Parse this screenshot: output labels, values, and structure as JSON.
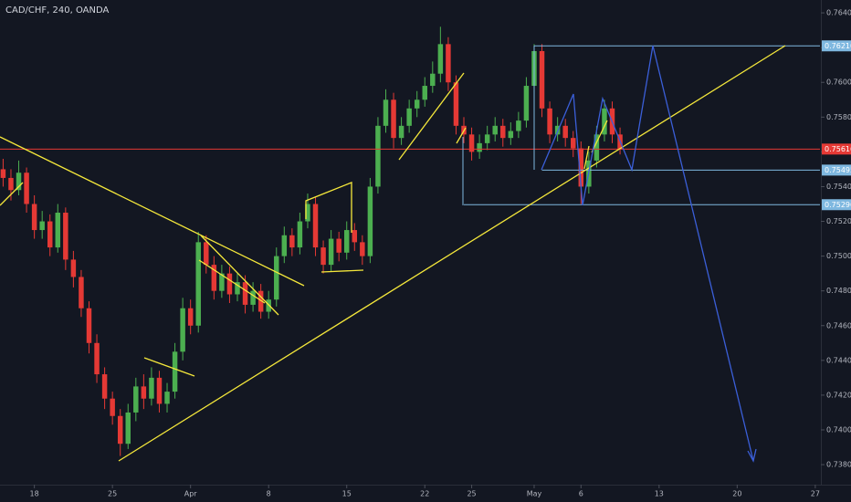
{
  "chart_data": {
    "type": "candlestick",
    "title": "CAD/CHF, 240, OANDA",
    "up_color": "#4caf50",
    "down_color": "#e53935",
    "x": [
      -2,
      -1.5,
      -1,
      -0.5,
      0,
      0.5,
      1,
      1.5,
      2,
      2.5,
      3,
      3.5,
      4,
      4.5,
      5,
      5.5,
      6,
      6.5,
      7,
      7.5,
      8,
      8.5,
      9,
      9.5,
      10,
      10.5,
      11,
      11.5,
      12,
      12.5,
      13,
      13.5,
      14,
      14.5,
      15,
      15.5,
      16,
      16.5,
      17,
      17.5,
      18,
      18.5,
      19,
      19.5,
      20,
      20.5,
      21,
      21.5,
      22,
      22.5,
      23,
      23.5,
      24,
      24.5,
      25,
      25.5,
      26,
      26.5,
      27,
      27.5,
      28,
      28.5,
      29,
      29.5,
      30,
      30.5,
      31,
      31.5,
      32,
      32.5,
      33,
      33.5,
      34,
      34.5,
      35,
      35.5,
      36,
      36.5,
      37,
      37.5
    ],
    "ohlc": [
      [
        0.755,
        0.7556,
        0.754,
        0.7545
      ],
      [
        0.7545,
        0.755,
        0.7532,
        0.7538
      ],
      [
        0.7538,
        0.7555,
        0.7535,
        0.7548
      ],
      [
        0.7548,
        0.7551,
        0.7525,
        0.753
      ],
      [
        0.753,
        0.7535,
        0.751,
        0.7515
      ],
      [
        0.7515,
        0.7526,
        0.751,
        0.752
      ],
      [
        0.752,
        0.7524,
        0.75,
        0.7505
      ],
      [
        0.7505,
        0.753,
        0.7502,
        0.7525
      ],
      [
        0.7525,
        0.7528,
        0.7492,
        0.7498
      ],
      [
        0.7498,
        0.7503,
        0.7482,
        0.7488
      ],
      [
        0.7488,
        0.7492,
        0.7465,
        0.747
      ],
      [
        0.747,
        0.7474,
        0.7444,
        0.745
      ],
      [
        0.745,
        0.7455,
        0.7427,
        0.7432
      ],
      [
        0.7432,
        0.7436,
        0.7412,
        0.7418
      ],
      [
        0.7418,
        0.7422,
        0.7403,
        0.7408
      ],
      [
        0.7408,
        0.7412,
        0.7385,
        0.7392
      ],
      [
        0.7392,
        0.7415,
        0.7389,
        0.741
      ],
      [
        0.741,
        0.743,
        0.7405,
        0.7425
      ],
      [
        0.7425,
        0.7432,
        0.7412,
        0.7418
      ],
      [
        0.7418,
        0.7436,
        0.7414,
        0.743
      ],
      [
        0.743,
        0.7434,
        0.741,
        0.7415
      ],
      [
        0.7415,
        0.7427,
        0.741,
        0.7422
      ],
      [
        0.7422,
        0.745,
        0.7418,
        0.7445
      ],
      [
        0.7445,
        0.7476,
        0.744,
        0.747
      ],
      [
        0.747,
        0.7475,
        0.7455,
        0.746
      ],
      [
        0.746,
        0.7514,
        0.7456,
        0.7508
      ],
      [
        0.7508,
        0.7512,
        0.749,
        0.7495
      ],
      [
        0.7495,
        0.75,
        0.7475,
        0.748
      ],
      [
        0.748,
        0.7495,
        0.7476,
        0.749
      ],
      [
        0.749,
        0.7494,
        0.7473,
        0.7478
      ],
      [
        0.7478,
        0.749,
        0.7474,
        0.7485
      ],
      [
        0.7485,
        0.7489,
        0.7467,
        0.7472
      ],
      [
        0.7472,
        0.7485,
        0.7468,
        0.748
      ],
      [
        0.748,
        0.7484,
        0.7464,
        0.7468
      ],
      [
        0.7468,
        0.748,
        0.7464,
        0.7475
      ],
      [
        0.7475,
        0.7505,
        0.7471,
        0.75
      ],
      [
        0.75,
        0.7517,
        0.7496,
        0.7512
      ],
      [
        0.7512,
        0.7516,
        0.75,
        0.7505
      ],
      [
        0.7505,
        0.7525,
        0.7501,
        0.752
      ],
      [
        0.752,
        0.7536,
        0.7516,
        0.753
      ],
      [
        0.753,
        0.7534,
        0.75,
        0.7505
      ],
      [
        0.7505,
        0.7509,
        0.749,
        0.7495
      ],
      [
        0.7495,
        0.7515,
        0.7491,
        0.751
      ],
      [
        0.751,
        0.7514,
        0.7497,
        0.7502
      ],
      [
        0.7502,
        0.752,
        0.7498,
        0.7515
      ],
      [
        0.7515,
        0.7519,
        0.7503,
        0.7508
      ],
      [
        0.7508,
        0.7512,
        0.7495,
        0.75
      ],
      [
        0.75,
        0.7545,
        0.7496,
        0.754
      ],
      [
        0.754,
        0.758,
        0.7536,
        0.7575
      ],
      [
        0.7575,
        0.7596,
        0.7571,
        0.759
      ],
      [
        0.759,
        0.7594,
        0.7562,
        0.7568
      ],
      [
        0.7568,
        0.758,
        0.7564,
        0.7575
      ],
      [
        0.7575,
        0.759,
        0.7571,
        0.7585
      ],
      [
        0.7585,
        0.7595,
        0.758,
        0.759
      ],
      [
        0.759,
        0.7603,
        0.7586,
        0.7598
      ],
      [
        0.7598,
        0.7612,
        0.7594,
        0.7605
      ],
      [
        0.7605,
        0.7632,
        0.76,
        0.7622
      ],
      [
        0.7622,
        0.7626,
        0.7595,
        0.76
      ],
      [
        0.76,
        0.7604,
        0.757,
        0.7575
      ],
      [
        0.7575,
        0.758,
        0.7565,
        0.757
      ],
      [
        0.757,
        0.7574,
        0.7555,
        0.756
      ],
      [
        0.756,
        0.757,
        0.7556,
        0.7565
      ],
      [
        0.7565,
        0.7575,
        0.7561,
        0.757
      ],
      [
        0.757,
        0.758,
        0.7566,
        0.7575
      ],
      [
        0.7575,
        0.7579,
        0.7563,
        0.7568
      ],
      [
        0.7568,
        0.7577,
        0.7564,
        0.7572
      ],
      [
        0.7572,
        0.7583,
        0.7568,
        0.7578
      ],
      [
        0.7578,
        0.7603,
        0.7574,
        0.7598
      ],
      [
        0.7598,
        0.7622,
        0.7594,
        0.7618
      ],
      [
        0.7618,
        0.7622,
        0.758,
        0.7585
      ],
      [
        0.7585,
        0.7589,
        0.7565,
        0.757
      ],
      [
        0.757,
        0.758,
        0.7566,
        0.7575
      ],
      [
        0.7575,
        0.7579,
        0.7563,
        0.7568
      ],
      [
        0.7568,
        0.7572,
        0.7557,
        0.7562
      ],
      [
        0.7562,
        0.7566,
        0.753,
        0.754
      ],
      [
        0.754,
        0.756,
        0.7536,
        0.7555
      ],
      [
        0.7555,
        0.7575,
        0.7551,
        0.757
      ],
      [
        0.757,
        0.759,
        0.7566,
        0.7585
      ],
      [
        0.7585,
        0.7589,
        0.7565,
        0.757
      ],
      [
        0.757,
        0.7574,
        0.75585,
        0.75616
      ]
    ],
    "xlim": [
      -2.2,
      50.3
    ],
    "xticks": [
      {
        "value": 0,
        "label": "18"
      },
      {
        "value": 5,
        "label": "25"
      },
      {
        "value": 10,
        "label": "Apr"
      },
      {
        "value": 15,
        "label": "8"
      },
      {
        "value": 20,
        "label": "15"
      },
      {
        "value": 25,
        "label": "22"
      },
      {
        "value": 28,
        "label": "25"
      },
      {
        "value": 32,
        "label": "May"
      },
      {
        "value": 35,
        "label": "6"
      },
      {
        "value": 40,
        "label": "13"
      },
      {
        "value": 45,
        "label": "20"
      },
      {
        "value": 50,
        "label": "27"
      }
    ],
    "ylim": [
      0.7369,
      0.76474
    ],
    "yticks": [
      {
        "value": 0.764,
        "label": "0.76400"
      },
      {
        "value": 0.762,
        "label": "0.76200"
      },
      {
        "value": 0.76,
        "label": "0.76000"
      },
      {
        "value": 0.758,
        "label": "0.75800"
      },
      {
        "value": 0.756,
        "label": "0.75600"
      },
      {
        "value": 0.754,
        "label": "0.75400"
      },
      {
        "value": 0.752,
        "label": "0.75200"
      },
      {
        "value": 0.75,
        "label": "0.75000"
      },
      {
        "value": 0.748,
        "label": "0.74800"
      },
      {
        "value": 0.746,
        "label": "0.74600"
      },
      {
        "value": 0.744,
        "label": "0.74400"
      },
      {
        "value": 0.742,
        "label": "0.74200"
      },
      {
        "value": 0.74,
        "label": "0.74000"
      },
      {
        "value": 0.738,
        "label": "0.73800"
      }
    ],
    "levels": [
      {
        "value": 0.7621,
        "label": "0.76210",
        "color": "#7fb8e0",
        "from": 32
      },
      {
        "value": 0.75616,
        "label": "0.75616",
        "color": "#e53935",
        "from": -2.2
      },
      {
        "value": 0.75495,
        "label": "0.75495",
        "color": "#7fb8e0",
        "from": 32.5
      },
      {
        "value": 0.75296,
        "label": "0.75296",
        "color": "#7fb8e0",
        "from": 27.5
      }
    ]
  }
}
